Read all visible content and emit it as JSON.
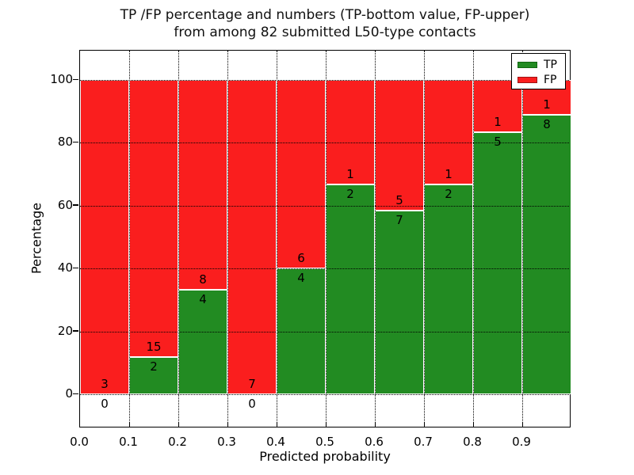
{
  "figure": {
    "title_line1": "TP /FP percentage and numbers (TP-bottom value, FP-upper)",
    "title_line2": "from among 82 submitted L50-type contacts",
    "xlabel": "Predicted probability",
    "ylabel": "Percentage"
  },
  "legend": {
    "items": [
      {
        "label": "TP",
        "color": "#228b22",
        "edge": "#116611"
      },
      {
        "label": "FP",
        "color": "#fa1e1e",
        "edge": "#a01414"
      }
    ]
  },
  "chart_data": {
    "type": "bar",
    "stacked": true,
    "normalized_to_percent": true,
    "title": "TP /FP percentage and numbers (TP-bottom value, FP-upper) from among 82 submitted L50-type contacts",
    "xlabel": "Predicted probability",
    "ylabel": "Percentage",
    "total_contacts": 82,
    "x_tick_labels": [
      "0.0",
      "0.1",
      "0.2",
      "0.3",
      "0.4",
      "0.5",
      "0.6",
      "0.7",
      "0.8",
      "0.9"
    ],
    "y_tick_values": [
      0,
      20,
      40,
      60,
      80,
      100
    ],
    "ylim": [
      -12,
      110
    ],
    "grid": "dotted black, vertical at x ticks and horizontal at y ticks",
    "legend_position": "upper right",
    "categories": [
      "0.0-0.1",
      "0.1-0.2",
      "0.2-0.3",
      "0.3-0.4",
      "0.4-0.5",
      "0.5-0.6",
      "0.6-0.7",
      "0.7-0.8",
      "0.8-0.9",
      "0.9-1.0"
    ],
    "series": [
      {
        "name": "TP",
        "color": "#228b22",
        "values": [
          0,
          2,
          4,
          0,
          4,
          2,
          7,
          2,
          5,
          8
        ]
      },
      {
        "name": "FP",
        "color": "#fa1e1e",
        "values": [
          3,
          15,
          8,
          7,
          6,
          1,
          5,
          1,
          1,
          1
        ]
      }
    ],
    "tp_percent_per_bin": [
      0.0,
      11.76,
      33.33,
      0.0,
      40.0,
      66.67,
      58.33,
      66.67,
      83.33,
      88.89
    ]
  }
}
